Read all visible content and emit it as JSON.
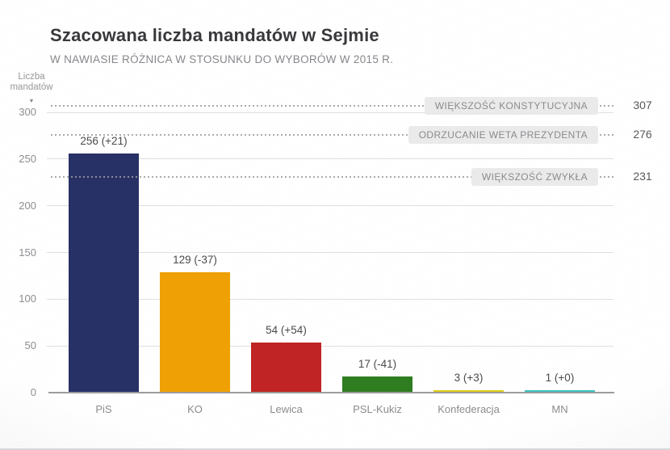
{
  "title": "Szacowana liczba mandatów w Sejmie",
  "subtitle": "W NAWIASIE RÓŻNICA W STOSUNKU DO WYBORÓW W 2015 R.",
  "y_axis": {
    "title_line1": "Liczba",
    "title_line2": "mandatów",
    "arrow_glyph": "▼"
  },
  "chart_data": {
    "type": "bar",
    "title": "Szacowana liczba mandatów w Sejmie",
    "subtitle": "W NAWIASIE RÓŻNICA W STOSUNKU DO WYBORÓW W 2015 R.",
    "ylabel": "Liczba mandatów",
    "categories": [
      "PiS",
      "KO",
      "Lewica",
      "PSL-Kukiz",
      "Konfederacja",
      "MN"
    ],
    "values": [
      256,
      129,
      54,
      17,
      3,
      1
    ],
    "value_labels": [
      "256 (+21)",
      "129 (-37)",
      "54 (+54)",
      "17 (-41)",
      "3 (+3)",
      "1 (+0)"
    ],
    "deltas_vs_2015": [
      21,
      -37,
      54,
      -41,
      3,
      0
    ],
    "bar_colors": [
      "#283166",
      "#efa004",
      "#c02424",
      "#2e7d20",
      "#ddce14",
      "#3dbfbf"
    ],
    "ylim": [
      0,
      310
    ],
    "yticks": [
      0,
      50,
      100,
      150,
      200,
      250,
      300
    ],
    "grid": true,
    "legend": false,
    "reference_lines": [
      {
        "value": 307,
        "label": "WIĘKSZOŚĆ KONSTYTUCYJNA"
      },
      {
        "value": 276,
        "label": "ODRZUCANIE WETA PREZYDENTA"
      },
      {
        "value": 231,
        "label": "WIĘKSZOŚĆ ZWYKŁA"
      }
    ]
  }
}
